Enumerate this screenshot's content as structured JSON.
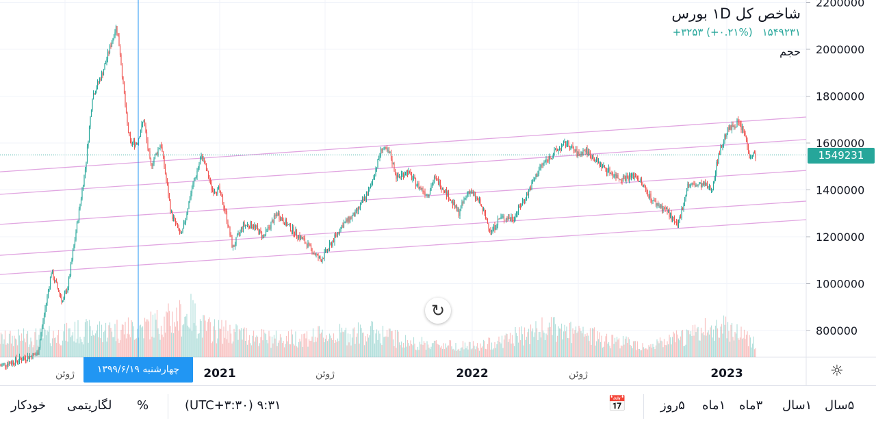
{
  "legend": {
    "title": "شاخص کل ۱D بورس",
    "last": "۱۵۴۹۲۳۱",
    "change": "+۳۲۵۳ (+۰.۲۱%)",
    "volume_label": "حجم"
  },
  "price_tag": "1549231",
  "crosshair_date": "چهارشنبه ۱۳۹۹/۶/۱۹",
  "colors": {
    "up": "#26a69a",
    "down": "#ef5350",
    "channel": "#e1a6e1",
    "crosshair": "#2196f3"
  },
  "toolbar": {
    "auto": "خودکار",
    "log": "لگاریتمی",
    "percent": "%",
    "timezone": "(UTC+۳:۳۰) ۹:۳۱",
    "ranges": [
      "۵سال",
      "۱سال",
      "۳ماه",
      "۱ماه",
      "۵روز"
    ]
  },
  "chart_data": {
    "type": "candlestick",
    "title": "شاخص کل ۱D بورس",
    "ylim": [
      700000,
      2220000
    ],
    "y_ticks": [
      2200000,
      2000000,
      1800000,
      1600000,
      1400000,
      1200000,
      1000000,
      800000
    ],
    "x_unit": "trading-day index",
    "xlim": [
      0,
      1178
    ],
    "x_ticks": [
      {
        "day": 95,
        "label": "ژوئن",
        "bold": false
      },
      {
        "day": 321,
        "label": "2021",
        "bold": true
      },
      {
        "day": 475,
        "label": "ژوئن",
        "bold": false
      },
      {
        "day": 690,
        "label": "2022",
        "bold": true
      },
      {
        "day": 845,
        "label": "ژوئن",
        "bold": false
      },
      {
        "day": 1062,
        "label": "2023",
        "bold": true
      }
    ],
    "close_path": [
      [
        0,
        650000
      ],
      [
        55,
        700000
      ],
      [
        75,
        1050000
      ],
      [
        92,
        920000
      ],
      [
        100,
        1000000
      ],
      [
        110,
        1200000
      ],
      [
        125,
        1500000
      ],
      [
        135,
        1800000
      ],
      [
        150,
        1900000
      ],
      [
        170,
        2100000
      ],
      [
        175,
        2000000
      ],
      [
        185,
        1700000
      ],
      [
        190,
        1600000
      ],
      [
        200,
        1600000
      ],
      [
        210,
        1700000
      ],
      [
        220,
        1500000
      ],
      [
        235,
        1600000
      ],
      [
        250,
        1300000
      ],
      [
        265,
        1200000
      ],
      [
        280,
        1400000
      ],
      [
        295,
        1550000
      ],
      [
        310,
        1400000
      ],
      [
        320,
        1400000
      ],
      [
        330,
        1300000
      ],
      [
        340,
        1150000
      ],
      [
        355,
        1250000
      ],
      [
        370,
        1250000
      ],
      [
        385,
        1200000
      ],
      [
        405,
        1300000
      ],
      [
        420,
        1250000
      ],
      [
        445,
        1180000
      ],
      [
        468,
        1100000
      ],
      [
        480,
        1150000
      ],
      [
        500,
        1250000
      ],
      [
        520,
        1300000
      ],
      [
        540,
        1400000
      ],
      [
        558,
        1580000
      ],
      [
        570,
        1550000
      ],
      [
        580,
        1450000
      ],
      [
        595,
        1480000
      ],
      [
        610,
        1420000
      ],
      [
        625,
        1380000
      ],
      [
        635,
        1450000
      ],
      [
        650,
        1400000
      ],
      [
        670,
        1300000
      ],
      [
        685,
        1400000
      ],
      [
        700,
        1350000
      ],
      [
        718,
        1220000
      ],
      [
        730,
        1280000
      ],
      [
        750,
        1280000
      ],
      [
        770,
        1380000
      ],
      [
        790,
        1500000
      ],
      [
        810,
        1560000
      ],
      [
        828,
        1600000
      ],
      [
        845,
        1550000
      ],
      [
        855,
        1570000
      ],
      [
        880,
        1500000
      ],
      [
        905,
        1450000
      ],
      [
        930,
        1460000
      ],
      [
        955,
        1350000
      ],
      [
        975,
        1310000
      ],
      [
        990,
        1240000
      ],
      [
        1005,
        1420000
      ],
      [
        1030,
        1420000
      ],
      [
        1040,
        1400000
      ],
      [
        1050,
        1550000
      ],
      [
        1062,
        1650000
      ],
      [
        1078,
        1690000
      ],
      [
        1088,
        1640000
      ],
      [
        1095,
        1550000
      ],
      [
        1105,
        1549231
      ]
    ],
    "volume_envelope": [
      [
        0,
        0.25
      ],
      [
        80,
        0.3
      ],
      [
        110,
        0.35
      ],
      [
        200,
        0.4
      ],
      [
        280,
        0.6
      ],
      [
        300,
        0.4
      ],
      [
        400,
        0.25
      ],
      [
        550,
        0.35
      ],
      [
        600,
        0.2
      ],
      [
        700,
        0.15
      ],
      [
        800,
        0.4
      ],
      [
        860,
        0.3
      ],
      [
        950,
        0.15
      ],
      [
        1060,
        0.45
      ],
      [
        1105,
        0.2
      ]
    ],
    "channel_lines": [
      [
        [
          0,
          1039000
        ],
        [
          1178,
          1273000
        ]
      ],
      [
        [
          0,
          1121000
        ],
        [
          1178,
          1352000
        ]
      ],
      [
        [
          0,
          1253000
        ],
        [
          1178,
          1483000
        ]
      ],
      [
        [
          0,
          1381000
        ],
        [
          1178,
          1615000
        ]
      ],
      [
        [
          0,
          1477000
        ],
        [
          1178,
          1711000
        ]
      ]
    ],
    "last_price": 1549231,
    "crosshair_day": 202
  }
}
